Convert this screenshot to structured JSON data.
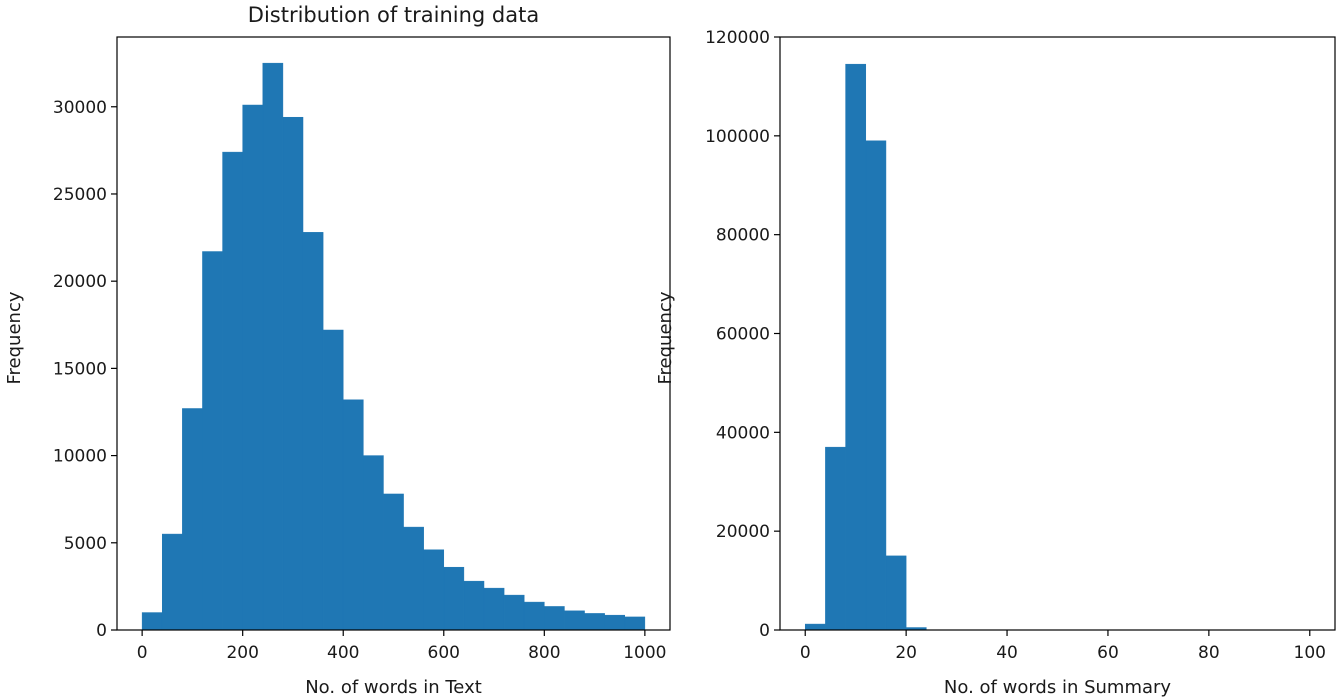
{
  "chart_data": [
    {
      "type": "bar",
      "title": "Distribution of training data",
      "xlabel": "No. of words in Text",
      "ylabel": "Frequency",
      "xlim": [
        -50,
        1050
      ],
      "ylim": [
        0,
        34000
      ],
      "xticks": [
        0,
        200,
        400,
        600,
        800,
        1000
      ],
      "yticks": [
        0,
        5000,
        10000,
        15000,
        20000,
        25000,
        30000
      ],
      "bin_edges": [
        0,
        40,
        80,
        120,
        160,
        200,
        240,
        280,
        320,
        360,
        400,
        440,
        480,
        520,
        560,
        600,
        640,
        680,
        720,
        760,
        800,
        840,
        880,
        920,
        960,
        1000
      ],
      "values": [
        1000,
        5500,
        12700,
        21700,
        27400,
        30100,
        32500,
        29400,
        22800,
        17200,
        13200,
        10000,
        7800,
        5900,
        4600,
        3600,
        2800,
        2400,
        2000,
        1600,
        1350,
        1100,
        950,
        850,
        750
      ],
      "grid": false,
      "color": "#1f77b4"
    },
    {
      "type": "bar",
      "title": "",
      "xlabel": "No. of words in Summary",
      "ylabel": "Frequency",
      "xlim": [
        -5,
        105
      ],
      "ylim": [
        0,
        120000
      ],
      "xticks": [
        0,
        20,
        40,
        60,
        80,
        100
      ],
      "yticks": [
        0,
        20000,
        40000,
        60000,
        80000,
        100000,
        120000
      ],
      "bin_edges": [
        0,
        4,
        8,
        12,
        16,
        20,
        24,
        28,
        32,
        36,
        40,
        44,
        48,
        52,
        56,
        60,
        64,
        68,
        72,
        76,
        80,
        84,
        88,
        92,
        96,
        100
      ],
      "values": [
        1200,
        37000,
        114500,
        99000,
        15000,
        500,
        50,
        0,
        0,
        0,
        0,
        0,
        0,
        0,
        0,
        0,
        0,
        0,
        0,
        0,
        0,
        0,
        0,
        0,
        0
      ],
      "grid": false,
      "color": "#1f77b4"
    }
  ]
}
